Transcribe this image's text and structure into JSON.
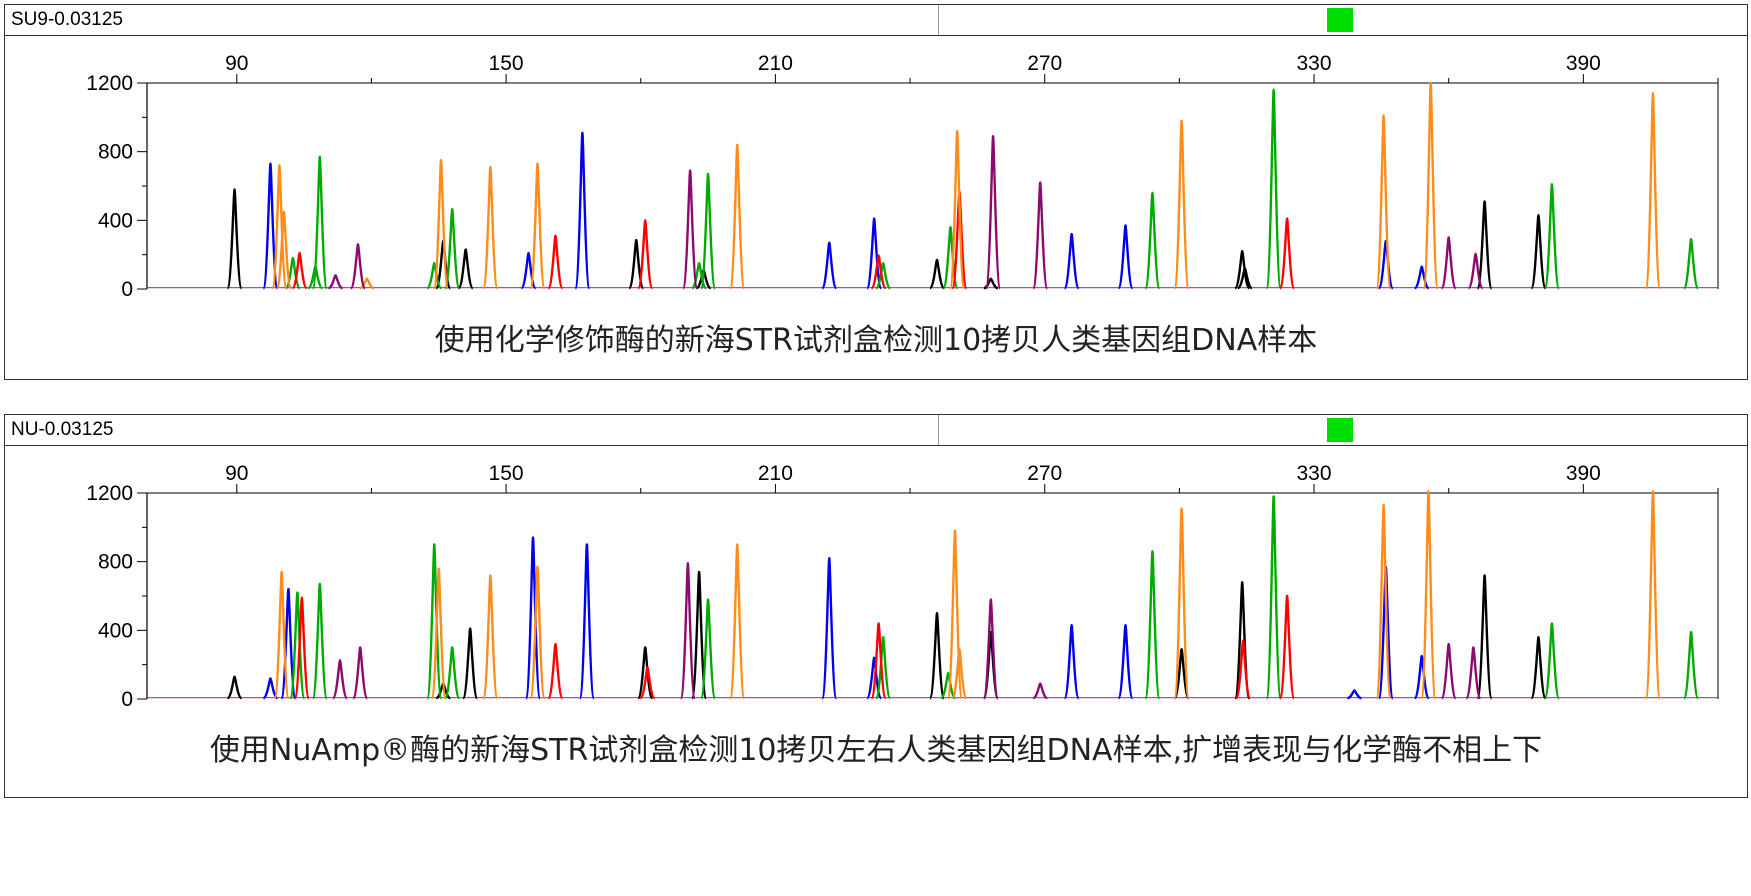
{
  "chart_data": [
    {
      "type": "line",
      "panel_label": "SU9-0.03125",
      "caption": "使用化学修饰酶的新海STR试剂盒检测10拷贝人类基因组DNA样本",
      "xlim": [
        70,
        420
      ],
      "ylim": [
        0,
        1200
      ],
      "x_ticks": [
        90,
        150,
        210,
        270,
        330,
        390
      ],
      "y_ticks": [
        0,
        400,
        800,
        1200
      ],
      "colors": {
        "blue": "#0000ee",
        "green": "#00aa00",
        "black": "#000000",
        "red": "#ff0000",
        "orange": "#ff8c1a",
        "purple": "#8b0a6f"
      },
      "series": [
        {
          "color": "black",
          "peaks": [
            [
              89.5,
              580
            ],
            [
              136,
              280
            ],
            [
              141,
              230
            ],
            [
              179,
              285
            ],
            [
              194,
              110
            ],
            [
              246,
              170
            ],
            [
              258,
              60
            ],
            [
              314,
              220
            ],
            [
              314.6,
              120
            ],
            [
              368,
              510
            ],
            [
              380,
              430
            ]
          ]
        },
        {
          "color": "blue",
          "peaks": [
            [
              97.5,
              730
            ],
            [
              155,
              210
            ],
            [
              167,
              910
            ],
            [
              222,
              270
            ],
            [
              232,
              410
            ],
            [
              276,
              320
            ],
            [
              288,
              370
            ],
            [
              346,
              280
            ],
            [
              354,
              130
            ]
          ]
        },
        {
          "color": "green",
          "peaks": [
            [
              102.5,
              180
            ],
            [
              107.5,
              130
            ],
            [
              108.5,
              770
            ],
            [
              134,
              150
            ],
            [
              138,
              465
            ],
            [
              193,
              150
            ],
            [
              195,
              670
            ],
            [
              234,
              150
            ],
            [
              249,
              360
            ],
            [
              294,
              560
            ],
            [
              321,
              1160
            ],
            [
              383,
              610
            ],
            [
              414,
              290
            ]
          ]
        },
        {
          "color": "red",
          "peaks": [
            [
              104,
              210
            ],
            [
              161,
              310
            ],
            [
              181,
              400
            ],
            [
              233,
              195
            ],
            [
              251,
              570
            ],
            [
              324,
              410
            ]
          ]
        },
        {
          "color": "orange",
          "peaks": [
            [
              99.5,
              720
            ],
            [
              100.5,
              450
            ],
            [
              119,
              60
            ],
            [
              135.5,
              750
            ],
            [
              146.5,
              710
            ],
            [
              157,
              730
            ],
            [
              201.5,
              840
            ],
            [
              250.5,
              920
            ],
            [
              300.5,
              980
            ],
            [
              345.5,
              1010
            ],
            [
              356,
              1200
            ],
            [
              405.5,
              1140
            ]
          ]
        },
        {
          "color": "purple",
          "peaks": [
            [
              112,
              80
            ],
            [
              117,
              260
            ],
            [
              191,
              690
            ],
            [
              258.5,
              890
            ],
            [
              269,
              620
            ],
            [
              360,
              300
            ],
            [
              366,
              205
            ]
          ]
        }
      ]
    },
    {
      "type": "line",
      "panel_label": "NU-0.03125",
      "caption": "使用NuAmp®酶的新海STR试剂盒检测10拷贝左右人类基因组DNA样本,扩增表现与化学酶不相上下",
      "xlim": [
        70,
        420
      ],
      "ylim": [
        0,
        1200
      ],
      "x_ticks": [
        90,
        150,
        210,
        270,
        330,
        390
      ],
      "y_ticks": [
        0,
        400,
        800,
        1200
      ],
      "colors": {
        "blue": "#0000ee",
        "green": "#00aa00",
        "black": "#000000",
        "red": "#ff0000",
        "orange": "#ff8c1a",
        "purple": "#8b0a6f"
      },
      "series": [
        {
          "color": "black",
          "peaks": [
            [
              89.5,
              130
            ],
            [
              136,
              90
            ],
            [
              142,
              410
            ],
            [
              181,
              300
            ],
            [
              193,
              740
            ],
            [
              246,
              500
            ],
            [
              258,
              390
            ],
            [
              300.5,
              290
            ],
            [
              314,
              680
            ],
            [
              368,
              720
            ],
            [
              380,
              360
            ]
          ]
        },
        {
          "color": "blue",
          "peaks": [
            [
              97.5,
              120
            ],
            [
              101.5,
              640
            ],
            [
              156,
              940
            ],
            [
              168,
              900
            ],
            [
              222,
              820
            ],
            [
              232,
              240
            ],
            [
              276,
              430
            ],
            [
              288,
              430
            ],
            [
              346,
              770
            ],
            [
              354,
              250
            ],
            [
              339,
              50
            ]
          ]
        },
        {
          "color": "green",
          "peaks": [
            [
              103.5,
              620
            ],
            [
              108.5,
              670
            ],
            [
              134,
              900
            ],
            [
              138,
              300
            ],
            [
              195,
              580
            ],
            [
              234,
              360
            ],
            [
              248.5,
              150
            ],
            [
              294,
              860
            ],
            [
              321,
              1180
            ],
            [
              383,
              440
            ],
            [
              414,
              390
            ]
          ]
        },
        {
          "color": "red",
          "peaks": [
            [
              104.5,
              590
            ],
            [
              161,
              320
            ],
            [
              181.5,
              185
            ],
            [
              233,
              440
            ],
            [
              314.2,
              340
            ],
            [
              324,
              600
            ]
          ]
        },
        {
          "color": "orange",
          "peaks": [
            [
              100,
              740
            ],
            [
              135,
              760
            ],
            [
              146.5,
              720
            ],
            [
              157,
              770
            ],
            [
              201.5,
              900
            ],
            [
              250,
              980
            ],
            [
              300.5,
              1110
            ],
            [
              345.5,
              1130
            ],
            [
              355.5,
              1290
            ],
            [
              405.5,
              1220
            ],
            [
              251,
              290
            ]
          ]
        },
        {
          "color": "purple",
          "peaks": [
            [
              113,
              225
            ],
            [
              117.5,
              300
            ],
            [
              190.5,
              790
            ],
            [
              258,
              580
            ],
            [
              269,
              90
            ],
            [
              360,
              320
            ],
            [
              365.5,
              300
            ]
          ]
        }
      ]
    }
  ]
}
